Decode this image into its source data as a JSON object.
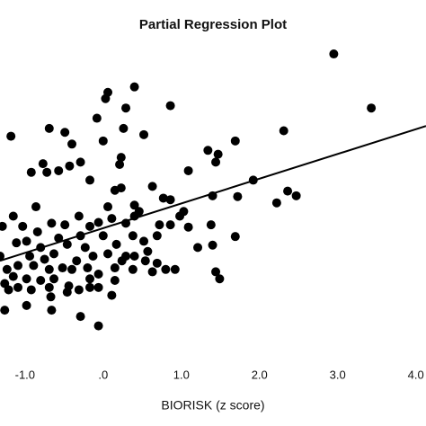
{
  "chart_data": {
    "type": "scatter",
    "title": "Partial Regression Plot",
    "x_label": "BIORISK (z score)",
    "xlim": [
      -1.32,
      4.13
    ],
    "ylim": [
      -1.49,
      2.41
    ],
    "xticks": [
      {
        "value": -1,
        "label": "-1.0"
      },
      {
        "value": 0,
        "label": ".0"
      },
      {
        "value": 1,
        "label": "1.0"
      },
      {
        "value": 2,
        "label": "2.0"
      },
      {
        "value": 3,
        "label": "3.0"
      },
      {
        "value": 4,
        "label": "4.0"
      }
    ],
    "color": "#000000",
    "x": [
      2.95,
      3.43,
      0.06,
      0.4,
      0.03,
      0.29,
      -0.08,
      0.86,
      -1.18,
      -0.69,
      -0.49,
      0,
      -0.4,
      0.26,
      0.52,
      1.69,
      2.31,
      1.34,
      1.44,
      1.47,
      1.09,
      0.23,
      0.21,
      -0.77,
      -0.92,
      -0.72,
      -0.57,
      -0.43,
      -0.29,
      -0.17,
      0.15,
      0.23,
      0.63,
      0.77,
      0.86,
      1.4,
      1.72,
      1.92,
      2.36,
      2.47,
      2.22,
      -0.86,
      -1.15,
      -1.29,
      -1.03,
      -0.84,
      -0.66,
      -0.49,
      -0.29,
      -0.17,
      -0.06,
      0.11,
      0.4,
      0.46,
      0.29,
      0.38,
      0,
      0.17,
      0.52,
      0.69,
      0.86,
      1.09,
      1.38,
      1.69,
      1.4,
      1.21,
      -1.11,
      -0.98,
      -0.8,
      -0.63,
      -0.46,
      -0.23,
      -0.13,
      0.06,
      0.24,
      0.4,
      0.54,
      0.69,
      0.8,
      0.92,
      0.15,
      -0.2,
      -0.34,
      -0.52,
      -0.69,
      -0.89,
      -1.09,
      -1.23,
      -0.98,
      -0.8,
      -0.63,
      -0.4,
      -0.17,
      -0.06,
      0.15,
      0.38,
      0.63,
      1.44,
      1.49,
      -1.09,
      -1.21,
      -0.92,
      -0.69,
      -0.46,
      -0.31,
      -0.06,
      0.11,
      -1.26,
      -0.98,
      -0.66,
      -0.29,
      -0.06,
      -1.32,
      -1.26,
      -1.15,
      -0.75,
      -0.57,
      -0.94,
      -0.31,
      -0.44,
      -0.67,
      -0.17,
      0.29,
      0.57,
      0.72,
      0.4,
      0.06,
      0.98,
      1.03
    ],
    "values": [
      2.18,
      1.49,
      1.69,
      1.76,
      1.61,
      1.49,
      1.36,
      1.52,
      1.13,
      1.23,
      1.18,
      1.07,
      1.03,
      1.23,
      1.15,
      1.07,
      1.2,
      0.95,
      0.8,
      0.9,
      0.69,
      0.86,
      0.77,
      0.78,
      0.67,
      0.67,
      0.69,
      0.75,
      0.8,
      0.57,
      0.44,
      0.47,
      0.49,
      0.34,
      0.32,
      0.37,
      0.36,
      0.57,
      0.43,
      0.37,
      0.28,
      0.23,
      0.11,
      -0.02,
      -0.02,
      -0.09,
      0.02,
      0,
      -0.14,
      -0.02,
      0.03,
      0.08,
      0.11,
      0.17,
      0.02,
      -0.14,
      -0.14,
      -0.25,
      -0.21,
      -0.14,
      0,
      -0.03,
      0,
      -0.15,
      -0.26,
      -0.29,
      -0.23,
      -0.21,
      -0.29,
      -0.37,
      -0.25,
      -0.29,
      -0.4,
      -0.37,
      -0.46,
      -0.4,
      -0.46,
      -0.49,
      -0.57,
      -0.57,
      -0.55,
      -0.55,
      -0.46,
      -0.55,
      -0.57,
      -0.52,
      -0.52,
      -0.57,
      -0.69,
      -0.71,
      -0.69,
      -0.57,
      -0.69,
      -0.63,
      -0.71,
      -0.57,
      -0.6,
      -0.6,
      -0.69,
      -0.8,
      -0.83,
      -0.83,
      -0.8,
      -0.86,
      -0.83,
      -0.8,
      -0.9,
      -1.09,
      -1.03,
      -1.09,
      -1.17,
      -1.29,
      -0.4,
      -0.75,
      -0.66,
      -0.44,
      -0.17,
      -0.4,
      0.11,
      -0.78,
      -0.92,
      -0.8,
      -0.4,
      -0.34,
      0,
      0.25,
      0.23,
      0.11,
      0.17
    ],
    "fit": {
      "x": [
        -1.32,
        4.13
      ],
      "y": [
        -0.46,
        1.26
      ]
    }
  }
}
